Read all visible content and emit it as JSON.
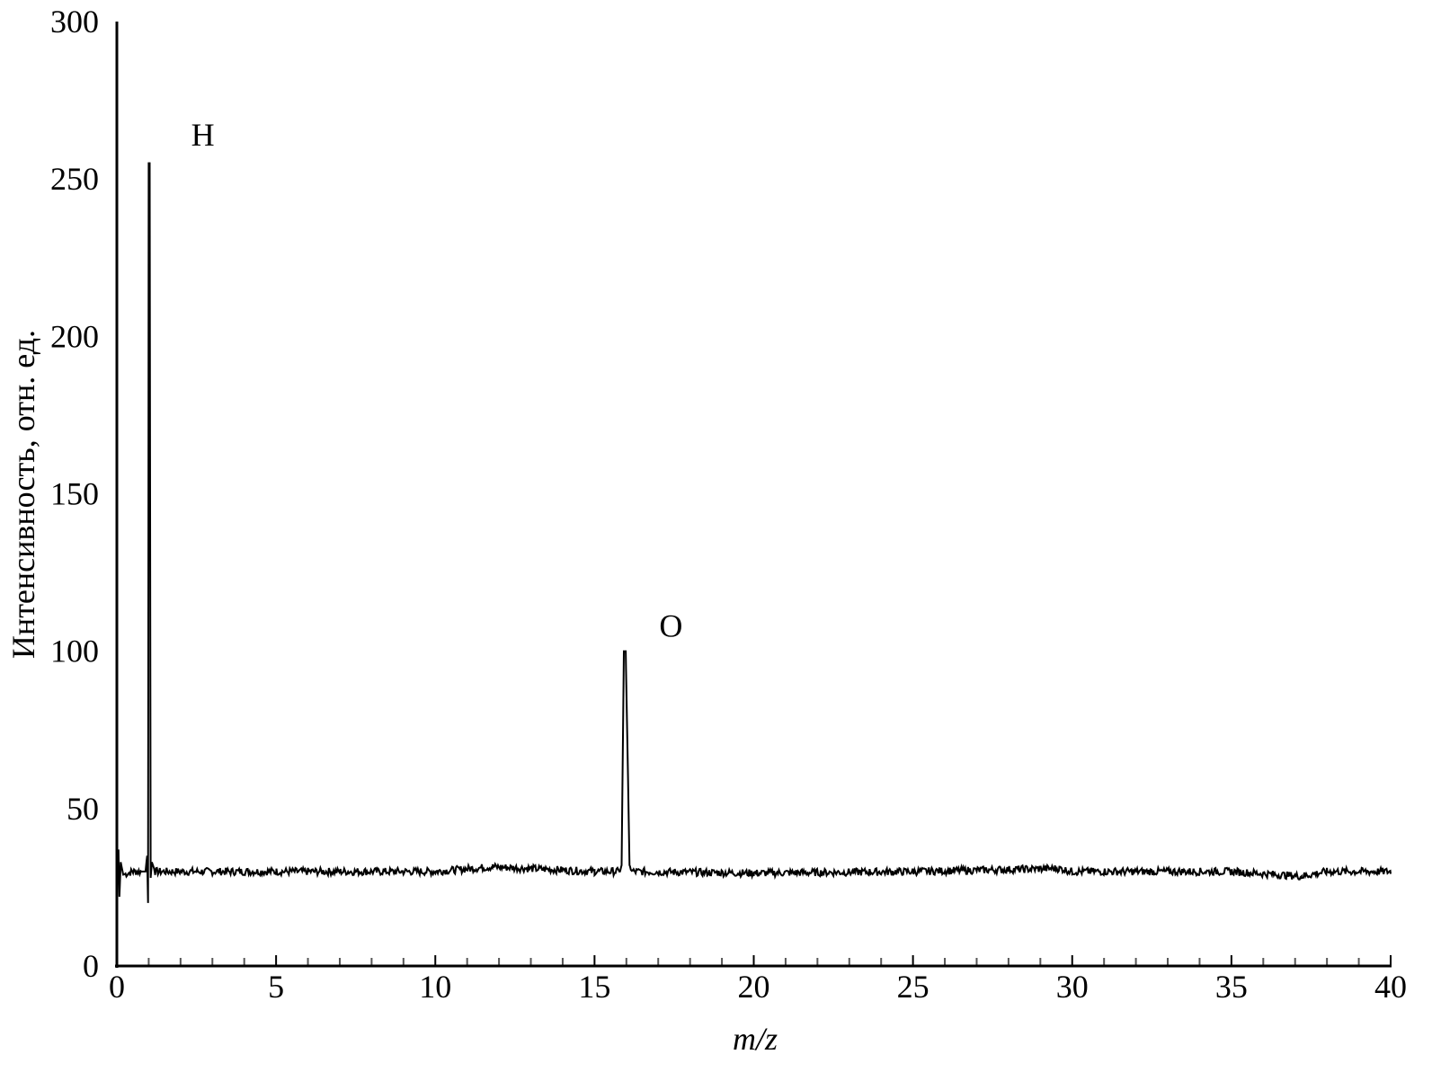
{
  "chart_data": {
    "type": "line",
    "title": "",
    "xlabel": "m/z",
    "ylabel": "Интенсивность, отн. ед.",
    "xlim": [
      0,
      40
    ],
    "ylim": [
      0,
      300
    ],
    "xticks": [
      0,
      5,
      10,
      15,
      20,
      25,
      30,
      35,
      40
    ],
    "xminor_step": 1,
    "yticks": [
      0,
      50,
      100,
      150,
      200,
      250,
      300
    ],
    "grid": false,
    "line_color": "#000000",
    "baseline": 30,
    "series": [
      {
        "points": [
          [
            0,
            30
          ],
          [
            0.05,
            37
          ],
          [
            0.08,
            22
          ],
          [
            0.12,
            33
          ],
          [
            0.2,
            29
          ],
          [
            0.5,
            30
          ],
          [
            0.9,
            30
          ],
          [
            0.95,
            35
          ],
          [
            0.98,
            20
          ],
          [
            1.0,
            255
          ],
          [
            1.03,
            255
          ],
          [
            1.06,
            28
          ],
          [
            1.1,
            33
          ],
          [
            1.2,
            30
          ],
          [
            5,
            30
          ],
          [
            10,
            30
          ],
          [
            11.8,
            31.5
          ],
          [
            15,
            30
          ],
          [
            15.8,
            30
          ],
          [
            15.85,
            32
          ],
          [
            15.92,
            100
          ],
          [
            15.98,
            100
          ],
          [
            16.1,
            32
          ],
          [
            16.2,
            30
          ],
          [
            20,
            29.5
          ],
          [
            25,
            30
          ],
          [
            29.6,
            31
          ],
          [
            30,
            30
          ],
          [
            35,
            30
          ],
          [
            37.2,
            28.5
          ],
          [
            38,
            30
          ],
          [
            40,
            30
          ]
        ]
      }
    ],
    "annotations": [
      {
        "text": "H",
        "x": 2.7,
        "y": 264
      },
      {
        "text": "O",
        "x": 17.4,
        "y": 108
      }
    ]
  }
}
